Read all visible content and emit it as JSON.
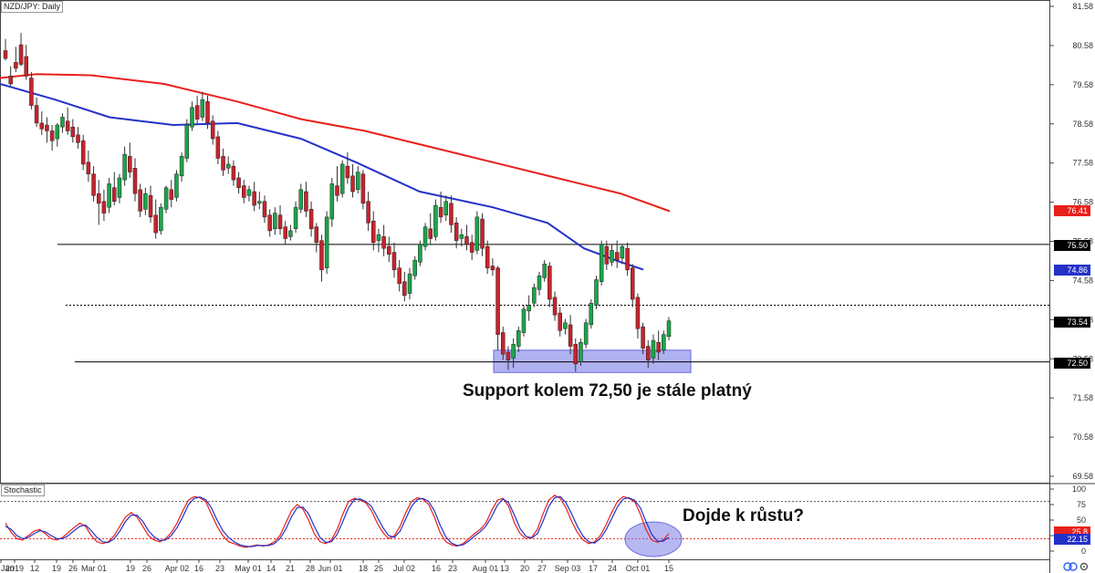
{
  "chart_data": [
    {
      "type": "candlestick",
      "title": "NZD/JPY: Daily",
      "ylim": [
        69.4,
        81.6
      ],
      "y_ticks": [
        "81.58",
        "80.58",
        "79.58",
        "78.58",
        "77.58",
        "76.58",
        "75.58",
        "74.58",
        "73.58",
        "72.58",
        "71.58",
        "70.58",
        "69.58"
      ],
      "x_ticks": [
        "Jan",
        "2019",
        "12",
        "19",
        "26",
        "Mar 01",
        "19",
        "26",
        "Apr 02",
        "16",
        "23",
        "May 01",
        "14",
        "21",
        "28",
        "Jun 01",
        "18",
        "25",
        "Jul 02",
        "16",
        "23",
        "Aug 01",
        "13",
        "20",
        "27",
        "Sep 03",
        "17",
        "24",
        "Oct 01",
        "15"
      ],
      "moving_averages": [
        {
          "name": "MA red",
          "color": "#e8201b",
          "last": "76.41",
          "path": [
            [
              0,
              79.75
            ],
            [
              40,
              79.85
            ],
            [
              100,
              79.82
            ],
            [
              180,
              79.6
            ],
            [
              260,
              79.15
            ],
            [
              330,
              78.7
            ],
            [
              400,
              78.4
            ],
            [
              470,
              78.0
            ],
            [
              540,
              77.6
            ],
            [
              610,
              77.2
            ],
            [
              680,
              76.8
            ],
            [
              734,
              76.35
            ]
          ]
        },
        {
          "name": "MA blue",
          "color": "#2431c8",
          "last": "74.86",
          "path": [
            [
              0,
              79.6
            ],
            [
              60,
              79.2
            ],
            [
              120,
              78.75
            ],
            [
              190,
              78.55
            ],
            [
              260,
              78.6
            ],
            [
              330,
              78.2
            ],
            [
              390,
              77.6
            ],
            [
              460,
              76.85
            ],
            [
              540,
              76.45
            ],
            [
              600,
              76.05
            ],
            [
              640,
              75.4
            ],
            [
              680,
              75.05
            ],
            [
              705,
              74.86
            ]
          ]
        }
      ],
      "horizontal_lines": [
        {
          "value": 75.5,
          "style": "solid",
          "label": "75.50"
        },
        {
          "value": 73.95,
          "style": "dotted"
        },
        {
          "value": 72.5,
          "style": "solid",
          "label": "72.50"
        }
      ],
      "last_price": "73.54",
      "support_zone": {
        "y_range": [
          72.23,
          72.8
        ],
        "x_range": [
          541,
          757
        ]
      },
      "annotation": "Support kolem 72,50 je stále platný",
      "ohlc": [
        [
          80.45,
          80.75,
          80.25,
          80.2
        ],
        [
          79.8,
          80.05,
          79.6,
          79.55
        ],
        [
          80.15,
          80.55,
          80.0,
          79.9
        ],
        [
          80.6,
          80.9,
          80.1,
          80.05
        ],
        [
          80.3,
          80.6,
          79.8,
          79.7
        ],
        [
          79.75,
          79.9,
          79.05,
          78.95
        ],
        [
          79.05,
          79.25,
          78.6,
          78.5
        ],
        [
          78.6,
          78.9,
          78.45,
          78.3
        ],
        [
          78.55,
          78.75,
          78.4,
          78.1
        ],
        [
          78.4,
          78.55,
          78.15,
          77.9
        ],
        [
          78.2,
          78.6,
          78.55,
          78.0
        ],
        [
          78.5,
          78.85,
          78.75,
          78.35
        ],
        [
          78.65,
          79.0,
          78.4,
          78.3
        ],
        [
          78.5,
          78.7,
          78.25,
          78.1
        ],
        [
          78.3,
          78.5,
          78.1,
          77.95
        ],
        [
          78.15,
          78.3,
          77.55,
          77.4
        ],
        [
          77.6,
          77.9,
          77.3,
          77.1
        ],
        [
          77.3,
          77.5,
          76.75,
          76.6
        ],
        [
          76.8,
          77.15,
          76.55,
          76.0
        ],
        [
          76.6,
          76.9,
          76.3,
          76.1
        ],
        [
          76.45,
          77.2,
          77.05,
          76.3
        ],
        [
          76.95,
          77.35,
          76.6,
          76.5
        ],
        [
          76.7,
          77.3,
          77.2,
          76.55
        ],
        [
          77.15,
          78.0,
          77.8,
          77.0
        ],
        [
          77.75,
          78.1,
          77.35,
          77.2
        ],
        [
          77.45,
          77.7,
          76.8,
          76.6
        ],
        [
          76.9,
          77.05,
          76.35,
          76.2
        ],
        [
          76.4,
          76.95,
          76.8,
          76.25
        ],
        [
          76.75,
          77.0,
          76.2,
          76.05
        ],
        [
          76.25,
          76.65,
          75.8,
          75.65
        ],
        [
          75.85,
          76.55,
          76.45,
          75.75
        ],
        [
          76.4,
          77.0,
          76.95,
          76.3
        ],
        [
          76.9,
          77.15,
          76.65,
          76.45
        ],
        [
          76.7,
          77.4,
          77.3,
          76.6
        ],
        [
          77.25,
          77.85,
          77.75,
          77.1
        ],
        [
          77.7,
          78.7,
          78.55,
          77.6
        ],
        [
          78.5,
          79.15,
          79.0,
          78.4
        ],
        [
          79.05,
          79.3,
          78.7,
          78.55
        ],
        [
          78.75,
          79.4,
          79.2,
          78.65
        ],
        [
          79.15,
          79.3,
          78.6,
          78.45
        ],
        [
          78.65,
          78.8,
          78.2,
          78.05
        ],
        [
          78.25,
          78.4,
          77.7,
          77.55
        ],
        [
          77.75,
          77.95,
          77.4,
          77.25
        ],
        [
          77.45,
          77.75,
          77.55,
          77.3
        ],
        [
          77.5,
          77.65,
          77.15,
          77.0
        ],
        [
          77.2,
          77.35,
          76.95,
          76.8
        ],
        [
          77.0,
          77.15,
          76.7,
          76.55
        ],
        [
          76.75,
          77.0,
          76.9,
          76.6
        ],
        [
          76.85,
          77.1,
          76.5,
          76.35
        ],
        [
          76.55,
          76.85,
          76.6,
          76.4
        ],
        [
          76.6,
          76.75,
          76.2,
          76.05
        ],
        [
          76.25,
          76.4,
          75.85,
          75.7
        ],
        [
          75.9,
          76.45,
          76.3,
          75.75
        ],
        [
          76.25,
          76.5,
          75.9,
          75.75
        ],
        [
          75.95,
          76.1,
          75.65,
          75.5
        ],
        [
          75.7,
          76.0,
          75.85,
          75.6
        ],
        [
          75.9,
          76.6,
          76.45,
          75.8
        ],
        [
          76.4,
          77.05,
          76.9,
          76.3
        ],
        [
          76.85,
          77.1,
          76.35,
          76.2
        ],
        [
          76.4,
          76.6,
          75.9,
          75.7
        ],
        [
          75.95,
          76.05,
          75.55,
          75.3
        ],
        [
          75.6,
          75.75,
          74.85,
          74.55
        ],
        [
          74.9,
          76.35,
          76.2,
          74.75
        ],
        [
          76.15,
          77.2,
          77.05,
          75.95
        ],
        [
          77.0,
          77.5,
          76.75,
          76.6
        ],
        [
          76.8,
          77.65,
          77.55,
          76.7
        ],
        [
          77.5,
          77.85,
          77.2,
          77.05
        ],
        [
          77.25,
          77.55,
          76.85,
          76.7
        ],
        [
          76.9,
          77.5,
          77.35,
          76.8
        ],
        [
          77.3,
          77.4,
          76.55,
          76.4
        ],
        [
          76.6,
          76.85,
          76.05,
          75.85
        ],
        [
          76.1,
          76.35,
          75.55,
          75.35
        ],
        [
          75.6,
          75.9,
          75.75,
          75.3
        ],
        [
          75.7,
          76.0,
          75.4,
          75.2
        ],
        [
          75.45,
          75.7,
          75.25,
          75.05
        ],
        [
          75.3,
          75.55,
          74.85,
          74.65
        ],
        [
          74.9,
          75.1,
          74.5,
          74.3
        ],
        [
          74.55,
          74.8,
          74.2,
          74.05
        ],
        [
          74.25,
          74.9,
          74.75,
          74.1
        ],
        [
          74.7,
          75.2,
          75.1,
          74.6
        ],
        [
          75.05,
          75.6,
          75.5,
          74.95
        ],
        [
          75.45,
          76.05,
          75.95,
          75.35
        ],
        [
          75.9,
          76.3,
          75.65,
          75.5
        ],
        [
          75.7,
          76.65,
          76.5,
          75.6
        ],
        [
          76.45,
          76.85,
          76.2,
          76.05
        ],
        [
          76.25,
          76.75,
          76.6,
          76.1
        ],
        [
          76.55,
          76.75,
          76.0,
          75.8
        ],
        [
          76.05,
          76.2,
          75.6,
          75.4
        ],
        [
          75.65,
          75.9,
          75.75,
          75.45
        ],
        [
          75.7,
          76.0,
          75.5,
          75.35
        ],
        [
          75.55,
          75.75,
          75.3,
          75.1
        ],
        [
          75.35,
          76.35,
          76.2,
          75.25
        ],
        [
          76.15,
          76.3,
          75.4,
          75.2
        ],
        [
          75.45,
          75.6,
          74.9,
          74.75
        ],
        [
          74.95,
          75.15,
          74.85,
          74.7
        ],
        [
          74.9,
          74.95,
          73.2,
          72.8
        ],
        [
          73.25,
          73.4,
          72.7,
          72.55
        ],
        [
          72.75,
          72.9,
          72.55,
          72.3
        ],
        [
          72.6,
          73.1,
          72.95,
          72.35
        ],
        [
          72.9,
          73.4,
          73.3,
          72.75
        ],
        [
          73.25,
          73.95,
          73.85,
          73.15
        ],
        [
          73.8,
          74.2,
          73.95,
          73.55
        ],
        [
          74.0,
          74.5,
          74.4,
          73.9
        ],
        [
          74.35,
          74.8,
          74.7,
          74.2
        ],
        [
          74.65,
          75.1,
          75.0,
          74.55
        ],
        [
          74.95,
          75.05,
          74.1,
          73.9
        ],
        [
          74.15,
          74.3,
          73.7,
          73.55
        ],
        [
          73.75,
          73.9,
          73.3,
          73.15
        ],
        [
          73.35,
          73.6,
          73.5,
          73.2
        ],
        [
          73.45,
          73.7,
          72.9,
          72.7
        ],
        [
          72.95,
          73.1,
          72.45,
          72.25
        ],
        [
          72.5,
          73.1,
          73.0,
          72.4
        ],
        [
          72.95,
          73.6,
          73.5,
          72.85
        ],
        [
          73.45,
          74.1,
          74.0,
          73.35
        ],
        [
          73.95,
          74.7,
          74.6,
          73.85
        ],
        [
          74.55,
          75.6,
          75.5,
          74.45
        ],
        [
          75.45,
          75.6,
          75.0,
          74.85
        ],
        [
          75.05,
          75.5,
          75.35,
          74.95
        ],
        [
          75.3,
          75.6,
          75.1,
          74.9
        ],
        [
          75.15,
          75.5,
          75.45,
          75.0
        ],
        [
          75.4,
          75.55,
          74.85,
          74.7
        ],
        [
          74.9,
          75.0,
          74.1,
          73.9
        ],
        [
          74.15,
          74.25,
          73.35,
          73.1
        ],
        [
          73.4,
          73.5,
          72.85,
          72.7
        ],
        [
          72.9,
          73.05,
          72.55,
          72.35
        ],
        [
          72.6,
          73.2,
          73.05,
          72.45
        ],
        [
          73.0,
          73.3,
          72.75,
          72.55
        ],
        [
          72.8,
          73.3,
          73.2,
          72.7
        ],
        [
          73.15,
          73.65,
          73.55,
          73.05
        ]
      ]
    },
    {
      "type": "line",
      "title": "Stochastic",
      "ylim": [
        0,
        100
      ],
      "y_ticks": [
        "100",
        "75",
        "50",
        "25",
        "0"
      ],
      "levels": [
        80,
        20
      ],
      "last_values": [
        "25.8",
        "22.15"
      ],
      "annotation": "Dojde k růstu?",
      "series": [
        {
          "color": "#e8201b",
          "values": [
            45,
            30,
            20,
            18,
            25,
            32,
            35,
            28,
            20,
            18,
            22,
            30,
            38,
            45,
            40,
            25,
            15,
            12,
            15,
            25,
            40,
            55,
            62,
            55,
            40,
            25,
            18,
            15,
            20,
            30,
            45,
            65,
            82,
            88,
            86,
            80,
            60,
            40,
            25,
            15,
            12,
            8,
            6,
            8,
            10,
            8,
            10,
            15,
            25,
            45,
            65,
            75,
            68,
            50,
            28,
            15,
            12,
            18,
            35,
            60,
            80,
            85,
            82,
            78,
            65,
            45,
            30,
            20,
            25,
            40,
            62,
            80,
            86,
            84,
            75,
            55,
            30,
            15,
            10,
            8,
            12,
            20,
            28,
            35,
            45,
            65,
            82,
            85,
            72,
            45,
            28,
            20,
            22,
            35,
            60,
            82,
            90,
            85,
            70,
            48,
            30,
            18,
            12,
            15,
            25,
            42,
            62,
            80,
            88,
            85,
            80,
            60,
            35,
            18,
            14,
            18,
            28
          ]
        },
        {
          "color": "#2431c8",
          "values": [
            40,
            35,
            25,
            20,
            22,
            28,
            33,
            31,
            25,
            20,
            20,
            25,
            33,
            40,
            42,
            33,
            22,
            15,
            14,
            20,
            32,
            48,
            58,
            58,
            48,
            33,
            23,
            17,
            18,
            25,
            38,
            55,
            75,
            85,
            87,
            83,
            70,
            50,
            33,
            22,
            15,
            10,
            8,
            7,
            9,
            9,
            9,
            12,
            20,
            35,
            55,
            70,
            71,
            60,
            40,
            22,
            14,
            15,
            27,
            48,
            70,
            83,
            84,
            80,
            72,
            55,
            38,
            25,
            22,
            32,
            52,
            72,
            83,
            85,
            80,
            65,
            42,
            23,
            13,
            9,
            10,
            16,
            24,
            31,
            40,
            55,
            74,
            84,
            78,
            58,
            36,
            24,
            21,
            28,
            48,
            72,
            86,
            88,
            78,
            60,
            40,
            24,
            15,
            13,
            20,
            34,
            52,
            71,
            84,
            86,
            82,
            70,
            48,
            27,
            16,
            16,
            22
          ]
        }
      ]
    }
  ]
}
